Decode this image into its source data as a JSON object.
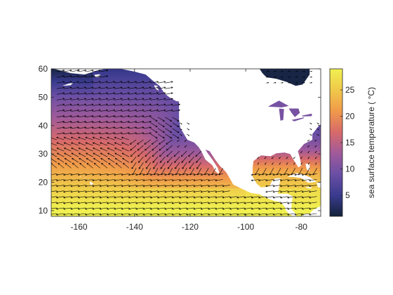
{
  "chart_data": {
    "type": "heatmap",
    "title": "",
    "xlabel": "",
    "ylabel": "",
    "xlim": [
      -170,
      -73
    ],
    "ylim": [
      8,
      60
    ],
    "x_ticks": [
      -160,
      -140,
      -120,
      -100,
      -80
    ],
    "y_ticks": [
      10,
      20,
      30,
      40,
      50,
      60
    ],
    "colorbar": {
      "label": "sea surface temperature ( °C)",
      "range": [
        1,
        29
      ],
      "ticks": [
        5,
        10,
        15,
        20,
        25
      ],
      "colormap": [
        "#13223a",
        "#3a3b8f",
        "#6a4fa5",
        "#a05a9a",
        "#d86a6a",
        "#f09a4a",
        "#f0c94a",
        "#f0f050"
      ]
    },
    "grid": false,
    "land_color": "#ffffff",
    "arrow_color": "#000000",
    "box_color": "#262626"
  }
}
